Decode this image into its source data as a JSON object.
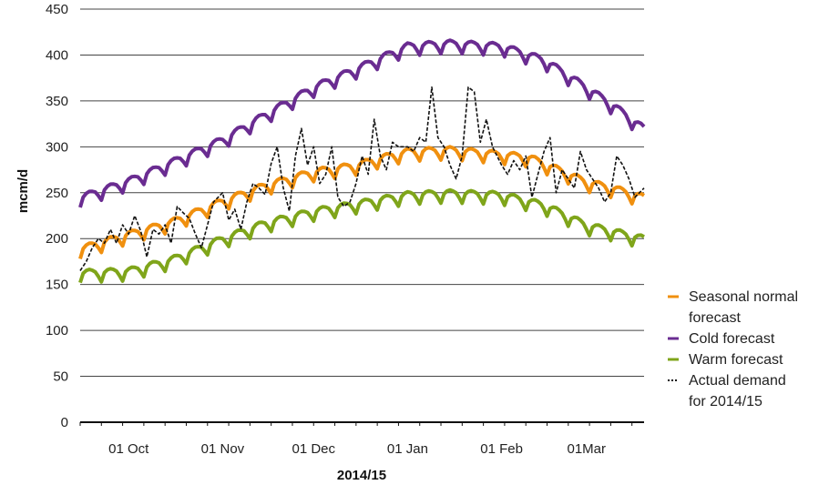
{
  "chart_data": {
    "type": "line",
    "title": "",
    "xlabel": "2014/15",
    "ylabel": "mcm/d",
    "ylim": [
      0,
      450
    ],
    "yticks": [
      0,
      50,
      100,
      150,
      200,
      250,
      300,
      350,
      400,
      450
    ],
    "x_start": "2014-09-15",
    "x_end": "2015-03-20",
    "x_tick_labels": [
      {
        "date": "2014-10-01",
        "label": "01 Oct"
      },
      {
        "date": "2014-11-01",
        "label": "01 Nov"
      },
      {
        "date": "2014-12-01",
        "label": "01 Dec"
      },
      {
        "date": "2015-01-01",
        "label": "01 Jan"
      },
      {
        "date": "2015-02-01",
        "label": "01 Feb"
      },
      {
        "date": "2015-03-01",
        "label": "01Mar"
      }
    ],
    "grid": true,
    "legend_position": "right",
    "series": [
      {
        "name": "Seasonal normal forecast",
        "legend_lines": [
          "Seasonal normal",
          "forecast"
        ],
        "color": "#F0900F",
        "style": "solid",
        "weekly": true,
        "points": [
          [
            "2014-09-15",
            184
          ],
          [
            "2014-10-01",
            200
          ],
          [
            "2014-10-15",
            213
          ],
          [
            "2014-11-01",
            236
          ],
          [
            "2014-11-15",
            253
          ],
          [
            "2014-12-01",
            268
          ],
          [
            "2014-12-15",
            275
          ],
          [
            "2014-12-22",
            282
          ],
          [
            "2015-01-01",
            290
          ],
          [
            "2015-01-15",
            292
          ],
          [
            "2015-02-01",
            287
          ],
          [
            "2015-02-10",
            284
          ],
          [
            "2015-02-20",
            270
          ],
          [
            "2015-03-01",
            257
          ],
          [
            "2015-03-10",
            250
          ],
          [
            "2015-03-20",
            240
          ]
        ]
      },
      {
        "name": "Cold forecast",
        "legend_lines": [
          "Cold forecast"
        ],
        "color": "#6A2C91",
        "style": "solid",
        "weekly": true,
        "points": [
          [
            "2014-09-15",
            240
          ],
          [
            "2014-10-01",
            258
          ],
          [
            "2014-10-15",
            278
          ],
          [
            "2014-11-01",
            303
          ],
          [
            "2014-11-15",
            330
          ],
          [
            "2014-12-01",
            360
          ],
          [
            "2014-12-15",
            380
          ],
          [
            "2015-01-01",
            405
          ],
          [
            "2015-01-15",
            408
          ],
          [
            "2015-02-01",
            405
          ],
          [
            "2015-02-15",
            390
          ],
          [
            "2015-03-01",
            360
          ],
          [
            "2015-03-10",
            340
          ],
          [
            "2015-03-20",
            315
          ]
        ]
      },
      {
        "name": "Warm forecast",
        "legend_lines": [
          "Warm forecast"
        ],
        "color": "#7FA51A",
        "style": "solid",
        "weekly": true,
        "points": [
          [
            "2014-09-15",
            158
          ],
          [
            "2014-10-01",
            160
          ],
          [
            "2014-10-15",
            172
          ],
          [
            "2014-11-01",
            195
          ],
          [
            "2014-11-15",
            212
          ],
          [
            "2014-12-01",
            225
          ],
          [
            "2014-12-15",
            233
          ],
          [
            "2015-01-01",
            243
          ],
          [
            "2015-01-15",
            245
          ],
          [
            "2015-02-01",
            243
          ],
          [
            "2015-02-15",
            232
          ],
          [
            "2015-03-01",
            210
          ],
          [
            "2015-03-10",
            203
          ],
          [
            "2015-03-20",
            195
          ]
        ]
      },
      {
        "name": "Actual demand for 2014/15",
        "legend_lines": [
          "Actual demand",
          "for 2014/15"
        ],
        "color": "#111111",
        "style": "dashed",
        "weekly": false,
        "points": [
          [
            "2014-09-15",
            165
          ],
          [
            "2014-09-17",
            175
          ],
          [
            "2014-09-19",
            190
          ],
          [
            "2014-09-21",
            200
          ],
          [
            "2014-09-23",
            195
          ],
          [
            "2014-09-25",
            210
          ],
          [
            "2014-09-27",
            195
          ],
          [
            "2014-09-29",
            215
          ],
          [
            "2014-10-01",
            205
          ],
          [
            "2014-10-03",
            225
          ],
          [
            "2014-10-05",
            208
          ],
          [
            "2014-10-07",
            180
          ],
          [
            "2014-10-09",
            210
          ],
          [
            "2014-10-11",
            205
          ],
          [
            "2014-10-13",
            215
          ],
          [
            "2014-10-15",
            195
          ],
          [
            "2014-10-17",
            235
          ],
          [
            "2014-10-19",
            228
          ],
          [
            "2014-10-21",
            222
          ],
          [
            "2014-10-23",
            205
          ],
          [
            "2014-10-25",
            190
          ],
          [
            "2014-10-27",
            215
          ],
          [
            "2014-10-29",
            240
          ],
          [
            "2014-11-01",
            250
          ],
          [
            "2014-11-03",
            220
          ],
          [
            "2014-11-05",
            232
          ],
          [
            "2014-11-07",
            210
          ],
          [
            "2014-11-09",
            240
          ],
          [
            "2014-11-11",
            260
          ],
          [
            "2014-11-13",
            255
          ],
          [
            "2014-11-15",
            248
          ],
          [
            "2014-11-17",
            282
          ],
          [
            "2014-11-19",
            300
          ],
          [
            "2014-11-21",
            255
          ],
          [
            "2014-11-23",
            230
          ],
          [
            "2014-11-25",
            290
          ],
          [
            "2014-11-27",
            320
          ],
          [
            "2014-11-29",
            280
          ],
          [
            "2014-12-01",
            300
          ],
          [
            "2014-12-03",
            260
          ],
          [
            "2014-12-05",
            270
          ],
          [
            "2014-12-07",
            300
          ],
          [
            "2014-12-09",
            245
          ],
          [
            "2014-12-11",
            235
          ],
          [
            "2014-12-13",
            240
          ],
          [
            "2014-12-15",
            260
          ],
          [
            "2014-12-17",
            290
          ],
          [
            "2014-12-19",
            270
          ],
          [
            "2014-12-21",
            330
          ],
          [
            "2014-12-23",
            290
          ],
          [
            "2014-12-25",
            275
          ],
          [
            "2014-12-27",
            305
          ],
          [
            "2014-12-29",
            300
          ],
          [
            "2015-01-01",
            300
          ],
          [
            "2015-01-03",
            295
          ],
          [
            "2015-01-05",
            310
          ],
          [
            "2015-01-07",
            305
          ],
          [
            "2015-01-09",
            365
          ],
          [
            "2015-01-11",
            310
          ],
          [
            "2015-01-13",
            300
          ],
          [
            "2015-01-15",
            280
          ],
          [
            "2015-01-17",
            265
          ],
          [
            "2015-01-19",
            290
          ],
          [
            "2015-01-21",
            365
          ],
          [
            "2015-01-23",
            360
          ],
          [
            "2015-01-25",
            305
          ],
          [
            "2015-01-27",
            330
          ],
          [
            "2015-01-29",
            300
          ],
          [
            "2015-02-01",
            280
          ],
          [
            "2015-02-03",
            270
          ],
          [
            "2015-02-05",
            285
          ],
          [
            "2015-02-07",
            275
          ],
          [
            "2015-02-09",
            290
          ],
          [
            "2015-02-11",
            245
          ],
          [
            "2015-02-13",
            270
          ],
          [
            "2015-02-15",
            295
          ],
          [
            "2015-02-17",
            310
          ],
          [
            "2015-02-19",
            250
          ],
          [
            "2015-02-21",
            275
          ],
          [
            "2015-02-23",
            265
          ],
          [
            "2015-02-25",
            255
          ],
          [
            "2015-02-27",
            295
          ],
          [
            "2015-03-01",
            275
          ],
          [
            "2015-03-03",
            265
          ],
          [
            "2015-03-05",
            255
          ],
          [
            "2015-03-07",
            240
          ],
          [
            "2015-03-09",
            250
          ],
          [
            "2015-03-11",
            290
          ],
          [
            "2015-03-13",
            280
          ],
          [
            "2015-03-15",
            265
          ],
          [
            "2015-03-17",
            245
          ],
          [
            "2015-03-20",
            255
          ]
        ]
      }
    ]
  }
}
